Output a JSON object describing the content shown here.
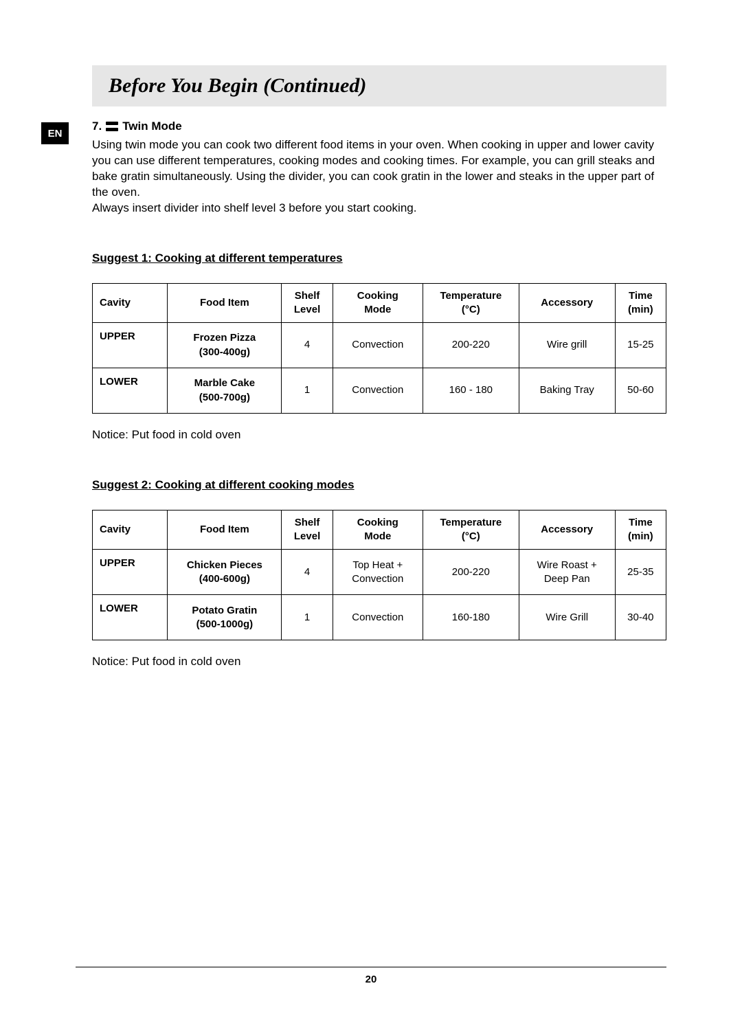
{
  "header": {
    "title": "Before You Begin (Continued)"
  },
  "lang_badge": "EN",
  "section": {
    "number": "7.",
    "title": "Twin Mode",
    "para1": "Using twin mode you can cook two different food items in your oven. When cooking in upper and lower cavity you can use different temperatures, cooking modes and cooking times. For example, you can grill steaks and bake gratin simultaneously. Using the divider, you can cook gratin in the lower and steaks in the upper part of the oven.",
    "para2": "Always insert divider into shelf level 3 before you start cooking."
  },
  "columns": {
    "cavity": "Cavity",
    "food": "Food Item",
    "shelf_l1": "Shelf",
    "shelf_l2": "Level",
    "mode_l1": "Cooking",
    "mode_l2": "Mode",
    "temp_l1": "Temperature",
    "temp_l2": "(°C)",
    "accessory": "Accessory",
    "time_l1": "Time",
    "time_l2": "(min)"
  },
  "table1": {
    "heading": "Suggest 1:  Cooking at different temperatures",
    "rows": [
      {
        "cavity": "UPPER",
        "food_l1": "Frozen Pizza",
        "food_l2": "(300-400g)",
        "shelf": "4",
        "mode": "Convection",
        "temp": "200-220",
        "accessory": "Wire grill",
        "time": "15-25"
      },
      {
        "cavity": "LOWER",
        "food_l1": "Marble Cake",
        "food_l2": "(500-700g)",
        "shelf": "1",
        "mode": "Convection",
        "temp": "160 - 180",
        "accessory": "Baking Tray",
        "time": "50-60"
      }
    ],
    "notice": "Notice: Put food in cold oven"
  },
  "table2": {
    "heading": "Suggest 2:  Cooking at different cooking modes",
    "rows": [
      {
        "cavity": "UPPER",
        "food_l1": "Chicken Pieces",
        "food_l2": "(400-600g)",
        "shelf": "4",
        "mode_l1": "Top Heat +",
        "mode_l2": "Convection",
        "temp": "200-220",
        "acc_l1": "Wire Roast +",
        "acc_l2": "Deep Pan",
        "time": "25-35"
      },
      {
        "cavity": "LOWER",
        "food_l1": "Potato Gratin",
        "food_l2": "(500-1000g)",
        "shelf": "1",
        "mode_l1": "Convection",
        "mode_l2": "",
        "temp": "160-180",
        "acc_l1": "Wire Grill",
        "acc_l2": "",
        "time": "30-40"
      }
    ],
    "notice": "Notice: Put food in cold oven"
  },
  "page_number": "20"
}
